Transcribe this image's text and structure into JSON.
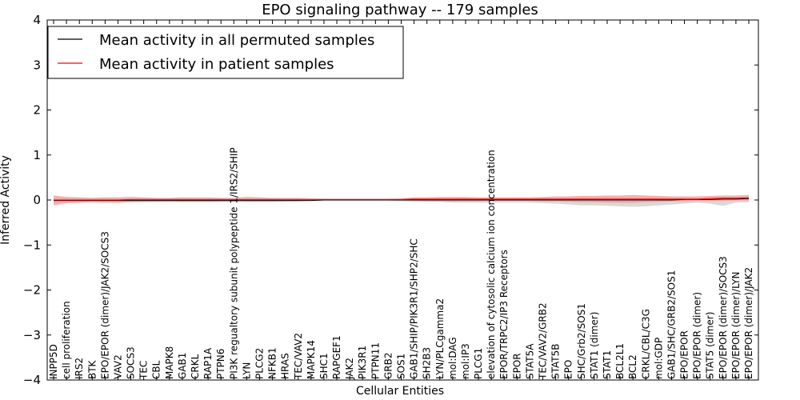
{
  "chart_data": {
    "type": "line",
    "title": "EPO signaling pathway -- 179 samples",
    "xlabel": "Cellular Entities",
    "ylabel": "Inferred Activity",
    "ylim": [
      -4,
      4
    ],
    "yticks": [
      -4,
      -3,
      -2,
      -1,
      0,
      1,
      2,
      3,
      4
    ],
    "ytick_labels": [
      "−4",
      "−3",
      "−2",
      "−1",
      "0",
      "1",
      "2",
      "3",
      "4"
    ],
    "grid": false,
    "legend_position": "top-left",
    "categories": [
      "INPP5D",
      "cell proliferation",
      "IRS2",
      "BTK",
      "EPO/EPOR (dimer)/JAK2/SOCS3",
      "VAV2",
      "SOCS3",
      "TEC",
      "CBL",
      "MAPK8",
      "GAB1",
      "CRKL",
      "RAP1A",
      "PTPN6",
      "PI3K regualtory subunit polypeptide 1/IRS2/SHIP",
      "LYN",
      "PLCG2",
      "NFKB1",
      "HRAS",
      "TEC/VAV2",
      "MAPK14",
      "SHC1",
      "RAPGEF1",
      "JAK2",
      "PIK3R1",
      "PTPN11",
      "GRB2",
      "SOS1",
      "GAB1/SHIP/PIK3R1/SHP2/SHC",
      "SH2B3",
      "LYN/PLCgamma2",
      "mol:DAG",
      "mol:IP3",
      "PLCG1",
      "elevation of cytosolic calcium ion concentration",
      "EPOR/TRPC2/IP3 Receptors",
      "EPOR",
      "STAT5A",
      "TEC/VAV2/GRB2",
      "STAT5B",
      "EPO",
      "SHC/Grb2/SOS1",
      "STAT1 (dimer)",
      "STAT1",
      "BCL2L1",
      "BCL2",
      "CRKL/CBL/C3G",
      "mol:GDP",
      "GAB1/SHC/GRB2/SOS1",
      "EPO/EPOR",
      "EPO/EPOR (dimer)",
      "STAT5 (dimer)",
      "EPO/EPOR (dimer)/SOCS3",
      "EPO/EPOR (dimer)/LYN",
      "EPO/EPOR (dimer)/JAK2"
    ],
    "series": [
      {
        "name": "Mean activity in all permuted samples",
        "color": "#000000",
        "values": [
          -0.01,
          -0.01,
          -0.01,
          -0.01,
          -0.01,
          -0.01,
          -0.01,
          -0.01,
          -0.01,
          -0.01,
          -0.01,
          -0.01,
          -0.01,
          -0.01,
          -0.01,
          -0.01,
          -0.01,
          -0.01,
          -0.01,
          -0.01,
          -0.01,
          0,
          0,
          0,
          0,
          0,
          0,
          0,
          0,
          0,
          0,
          0,
          0,
          0,
          0,
          0,
          0,
          0,
          0,
          0,
          0,
          0,
          0,
          0,
          0,
          0,
          0,
          0,
          0,
          0.01,
          0.01,
          0.01,
          0.02,
          0.02,
          0.03
        ],
        "band": {
          "color": "#cccccc",
          "lower": [
            -0.06,
            -0.06,
            -0.06,
            -0.05,
            -0.05,
            -0.05,
            -0.05,
            -0.05,
            -0.05,
            -0.05,
            -0.05,
            -0.05,
            -0.05,
            -0.05,
            -0.05,
            -0.05,
            -0.05,
            -0.05,
            -0.04,
            -0.03,
            -0.02,
            -0.01,
            -0.01,
            -0.01,
            -0.01,
            -0.01,
            -0.01,
            -0.03,
            -0.03,
            -0.04,
            -0.04,
            -0.06,
            -0.06,
            -0.06,
            -0.06,
            -0.06,
            -0.06,
            -0.06,
            -0.07,
            -0.08,
            -0.1,
            -0.12,
            -0.12,
            -0.13,
            -0.14,
            -0.15,
            -0.14,
            -0.12,
            -0.1,
            -0.08,
            -0.06,
            -0.08,
            -0.13,
            -0.06,
            -0.05
          ],
          "upper": [
            0.04,
            0.04,
            0.04,
            0.03,
            0.03,
            0.03,
            0.03,
            0.03,
            0.03,
            0.03,
            0.03,
            0.03,
            0.03,
            0.03,
            0.03,
            0.03,
            0.03,
            0.03,
            0.02,
            0.02,
            0.01,
            0.01,
            0.01,
            0.01,
            0.01,
            0.01,
            0.01,
            0.02,
            0.02,
            0.02,
            0.02,
            0.03,
            0.03,
            0.03,
            0.03,
            0.03,
            0.03,
            0.03,
            0.04,
            0.04,
            0.05,
            0.05,
            0.05,
            0.05,
            0.05,
            0.05,
            0.05,
            0.05,
            0.05,
            0.05,
            0.05,
            0.06,
            0.07,
            0.07,
            0.08
          ]
        }
      },
      {
        "name": "Mean activity in patient samples",
        "color": "#ff0000",
        "values": [
          0,
          0,
          0,
          0,
          0,
          0,
          0.01,
          0.01,
          0.01,
          0.01,
          0.01,
          0.01,
          0.01,
          0.01,
          0.01,
          0.01,
          0.01,
          0.01,
          0.01,
          0.01,
          0.01,
          0.01,
          0.01,
          0.01,
          0.01,
          0.01,
          0.01,
          0.01,
          0.02,
          0.02,
          0.02,
          0.02,
          0.02,
          0.02,
          0.02,
          0.02,
          0.02,
          0.02,
          0.02,
          0.02,
          0.02,
          0.02,
          0.02,
          0.02,
          0.02,
          0.02,
          0.02,
          0.02,
          0.02,
          0.02,
          0.02,
          0.03,
          0.04,
          0.04,
          0.05
        ],
        "band": {
          "color": "#f49595",
          "lower": [
            -0.12,
            -0.07,
            -0.06,
            -0.05,
            -0.06,
            -0.06,
            -0.05,
            -0.04,
            -0.04,
            -0.03,
            -0.04,
            -0.04,
            -0.04,
            -0.03,
            -0.02,
            -0.03,
            -0.03,
            -0.03,
            -0.03,
            -0.03,
            -0.02,
            -0.01,
            -0.01,
            -0.01,
            -0.01,
            -0.01,
            -0.01,
            -0.01,
            -0.02,
            -0.03,
            -0.03,
            -0.03,
            -0.03,
            -0.03,
            -0.02,
            -0.02,
            -0.02,
            -0.02,
            -0.03,
            -0.03,
            -0.04,
            -0.05,
            -0.05,
            -0.06,
            -0.06,
            -0.06,
            -0.05,
            -0.04,
            -0.03,
            -0.03,
            -0.02,
            -0.02,
            -0.02,
            -0.01,
            -0.01
          ],
          "upper": [
            0.1,
            0.07,
            0.06,
            0.05,
            0.06,
            0.06,
            0.07,
            0.06,
            0.05,
            0.05,
            0.06,
            0.06,
            0.06,
            0.05,
            0.05,
            0.07,
            0.06,
            0.05,
            0.05,
            0.05,
            0.04,
            0.03,
            0.03,
            0.03,
            0.03,
            0.03,
            0.03,
            0.04,
            0.06,
            0.06,
            0.07,
            0.07,
            0.07,
            0.06,
            0.06,
            0.06,
            0.06,
            0.06,
            0.07,
            0.08,
            0.08,
            0.09,
            0.09,
            0.1,
            0.1,
            0.11,
            0.1,
            0.09,
            0.08,
            0.08,
            0.08,
            0.09,
            0.1,
            0.1,
            0.11
          ]
        }
      }
    ]
  }
}
